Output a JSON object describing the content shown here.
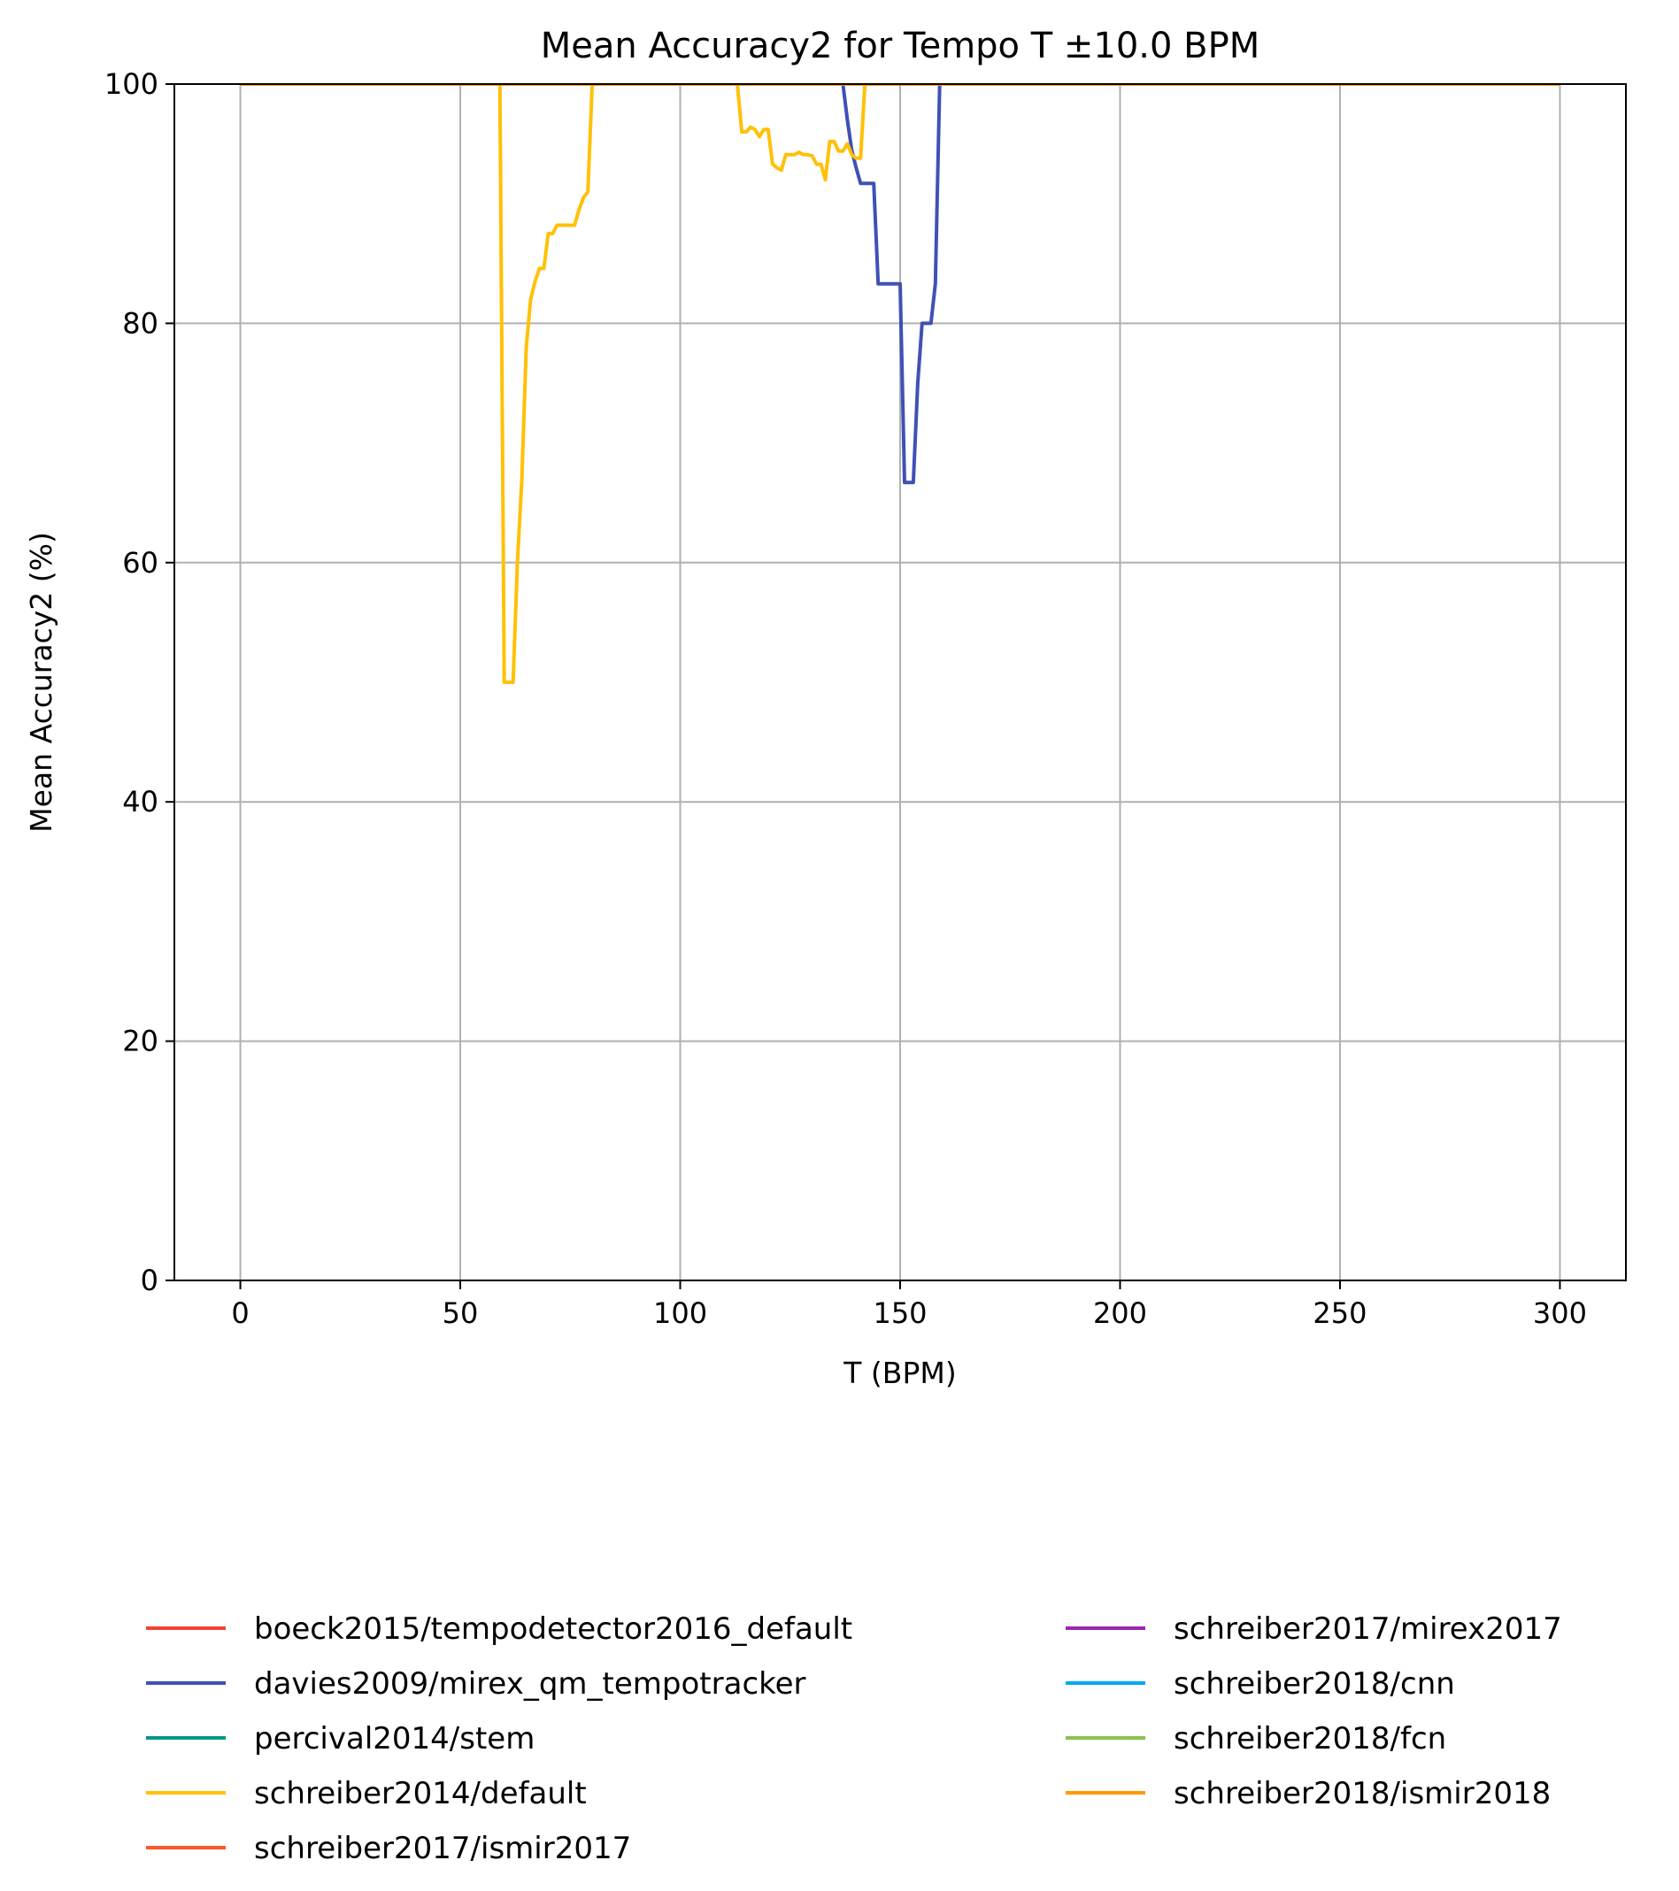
{
  "chart_data": {
    "type": "line",
    "title": "Mean Accuracy2 for Tempo T ±10.0 BPM",
    "xlabel": "T (BPM)",
    "ylabel": "Mean Accuracy2 (%)",
    "xlim": [
      -15,
      315
    ],
    "ylim": [
      0,
      100
    ],
    "xticks": [
      0,
      50,
      100,
      150,
      200,
      250,
      300
    ],
    "yticks": [
      0,
      20,
      40,
      60,
      80,
      100
    ],
    "grid": true,
    "legend_position": "below plot, two columns",
    "series": [
      {
        "name": "boeck2015/tempodetector2016_default",
        "color": "#f44336",
        "x": [
          0,
          300
        ],
        "y": [
          100,
          100
        ]
      },
      {
        "name": "davies2009/mirex_qm_tempotracker",
        "color": "#3f51b5",
        "x": [
          0,
          137,
          138,
          139,
          140,
          141,
          142,
          143,
          144,
          145,
          146,
          147,
          148,
          149,
          150,
          151,
          152,
          153,
          154,
          155,
          156,
          157,
          158,
          159,
          160,
          300
        ],
        "y": [
          100,
          100,
          97,
          94.5,
          93,
          91.7,
          91.7,
          91.7,
          91.7,
          83.3,
          83.3,
          83.3,
          83.3,
          83.3,
          83.3,
          66.7,
          66.7,
          66.7,
          75,
          80,
          80,
          80,
          83.3,
          100,
          100,
          100
        ]
      },
      {
        "name": "percival2014/stem",
        "color": "#009688",
        "x": [
          0,
          300
        ],
        "y": [
          100,
          100
        ]
      },
      {
        "name": "schreiber2014/default",
        "color": "#ffc107",
        "x": [
          0,
          59,
          60,
          61,
          62,
          63,
          64,
          65,
          66,
          67,
          68,
          69,
          70,
          71,
          72,
          73,
          74,
          75,
          76,
          77,
          78,
          79,
          80,
          81,
          113,
          114,
          115,
          116,
          117,
          118,
          119,
          120,
          121,
          122,
          123,
          124,
          125,
          126,
          127,
          128,
          129,
          130,
          131,
          132,
          133,
          134,
          135,
          136,
          137,
          138,
          139,
          140,
          141,
          142,
          143,
          300
        ],
        "y": [
          100,
          100,
          50,
          50,
          50,
          60,
          67,
          78,
          82,
          83.5,
          84.6,
          84.6,
          87.5,
          87.5,
          88.2,
          88.2,
          88.2,
          88.2,
          88.2,
          89.5,
          90.5,
          91,
          100,
          100,
          100,
          96,
          96,
          96.4,
          96.2,
          95.6,
          96.2,
          96.2,
          93.3,
          93,
          92.8,
          94.1,
          94.1,
          94.1,
          94.3,
          94.1,
          94.1,
          94,
          93.3,
          93.3,
          92,
          95.2,
          95.2,
          94.4,
          94.4,
          95,
          94.1,
          93.8,
          93.8,
          100,
          100,
          100
        ]
      },
      {
        "name": "schreiber2017/ismir2017",
        "color": "#ff5722",
        "x": [
          0,
          300
        ],
        "y": [
          100,
          100
        ]
      },
      {
        "name": "schreiber2017/mirex2017",
        "color": "#9c27b0",
        "x": [
          0,
          300
        ],
        "y": [
          100,
          100
        ]
      },
      {
        "name": "schreiber2018/cnn",
        "color": "#03a9f4",
        "x": [
          0,
          300
        ],
        "y": [
          100,
          100
        ]
      },
      {
        "name": "schreiber2018/fcn",
        "color": "#8bc34a",
        "x": [
          0,
          300
        ],
        "y": [
          100,
          100
        ]
      },
      {
        "name": "schreiber2018/ismir2018",
        "color": "#ff9800",
        "x": [
          0,
          300
        ],
        "y": [
          100,
          100
        ]
      }
    ]
  }
}
